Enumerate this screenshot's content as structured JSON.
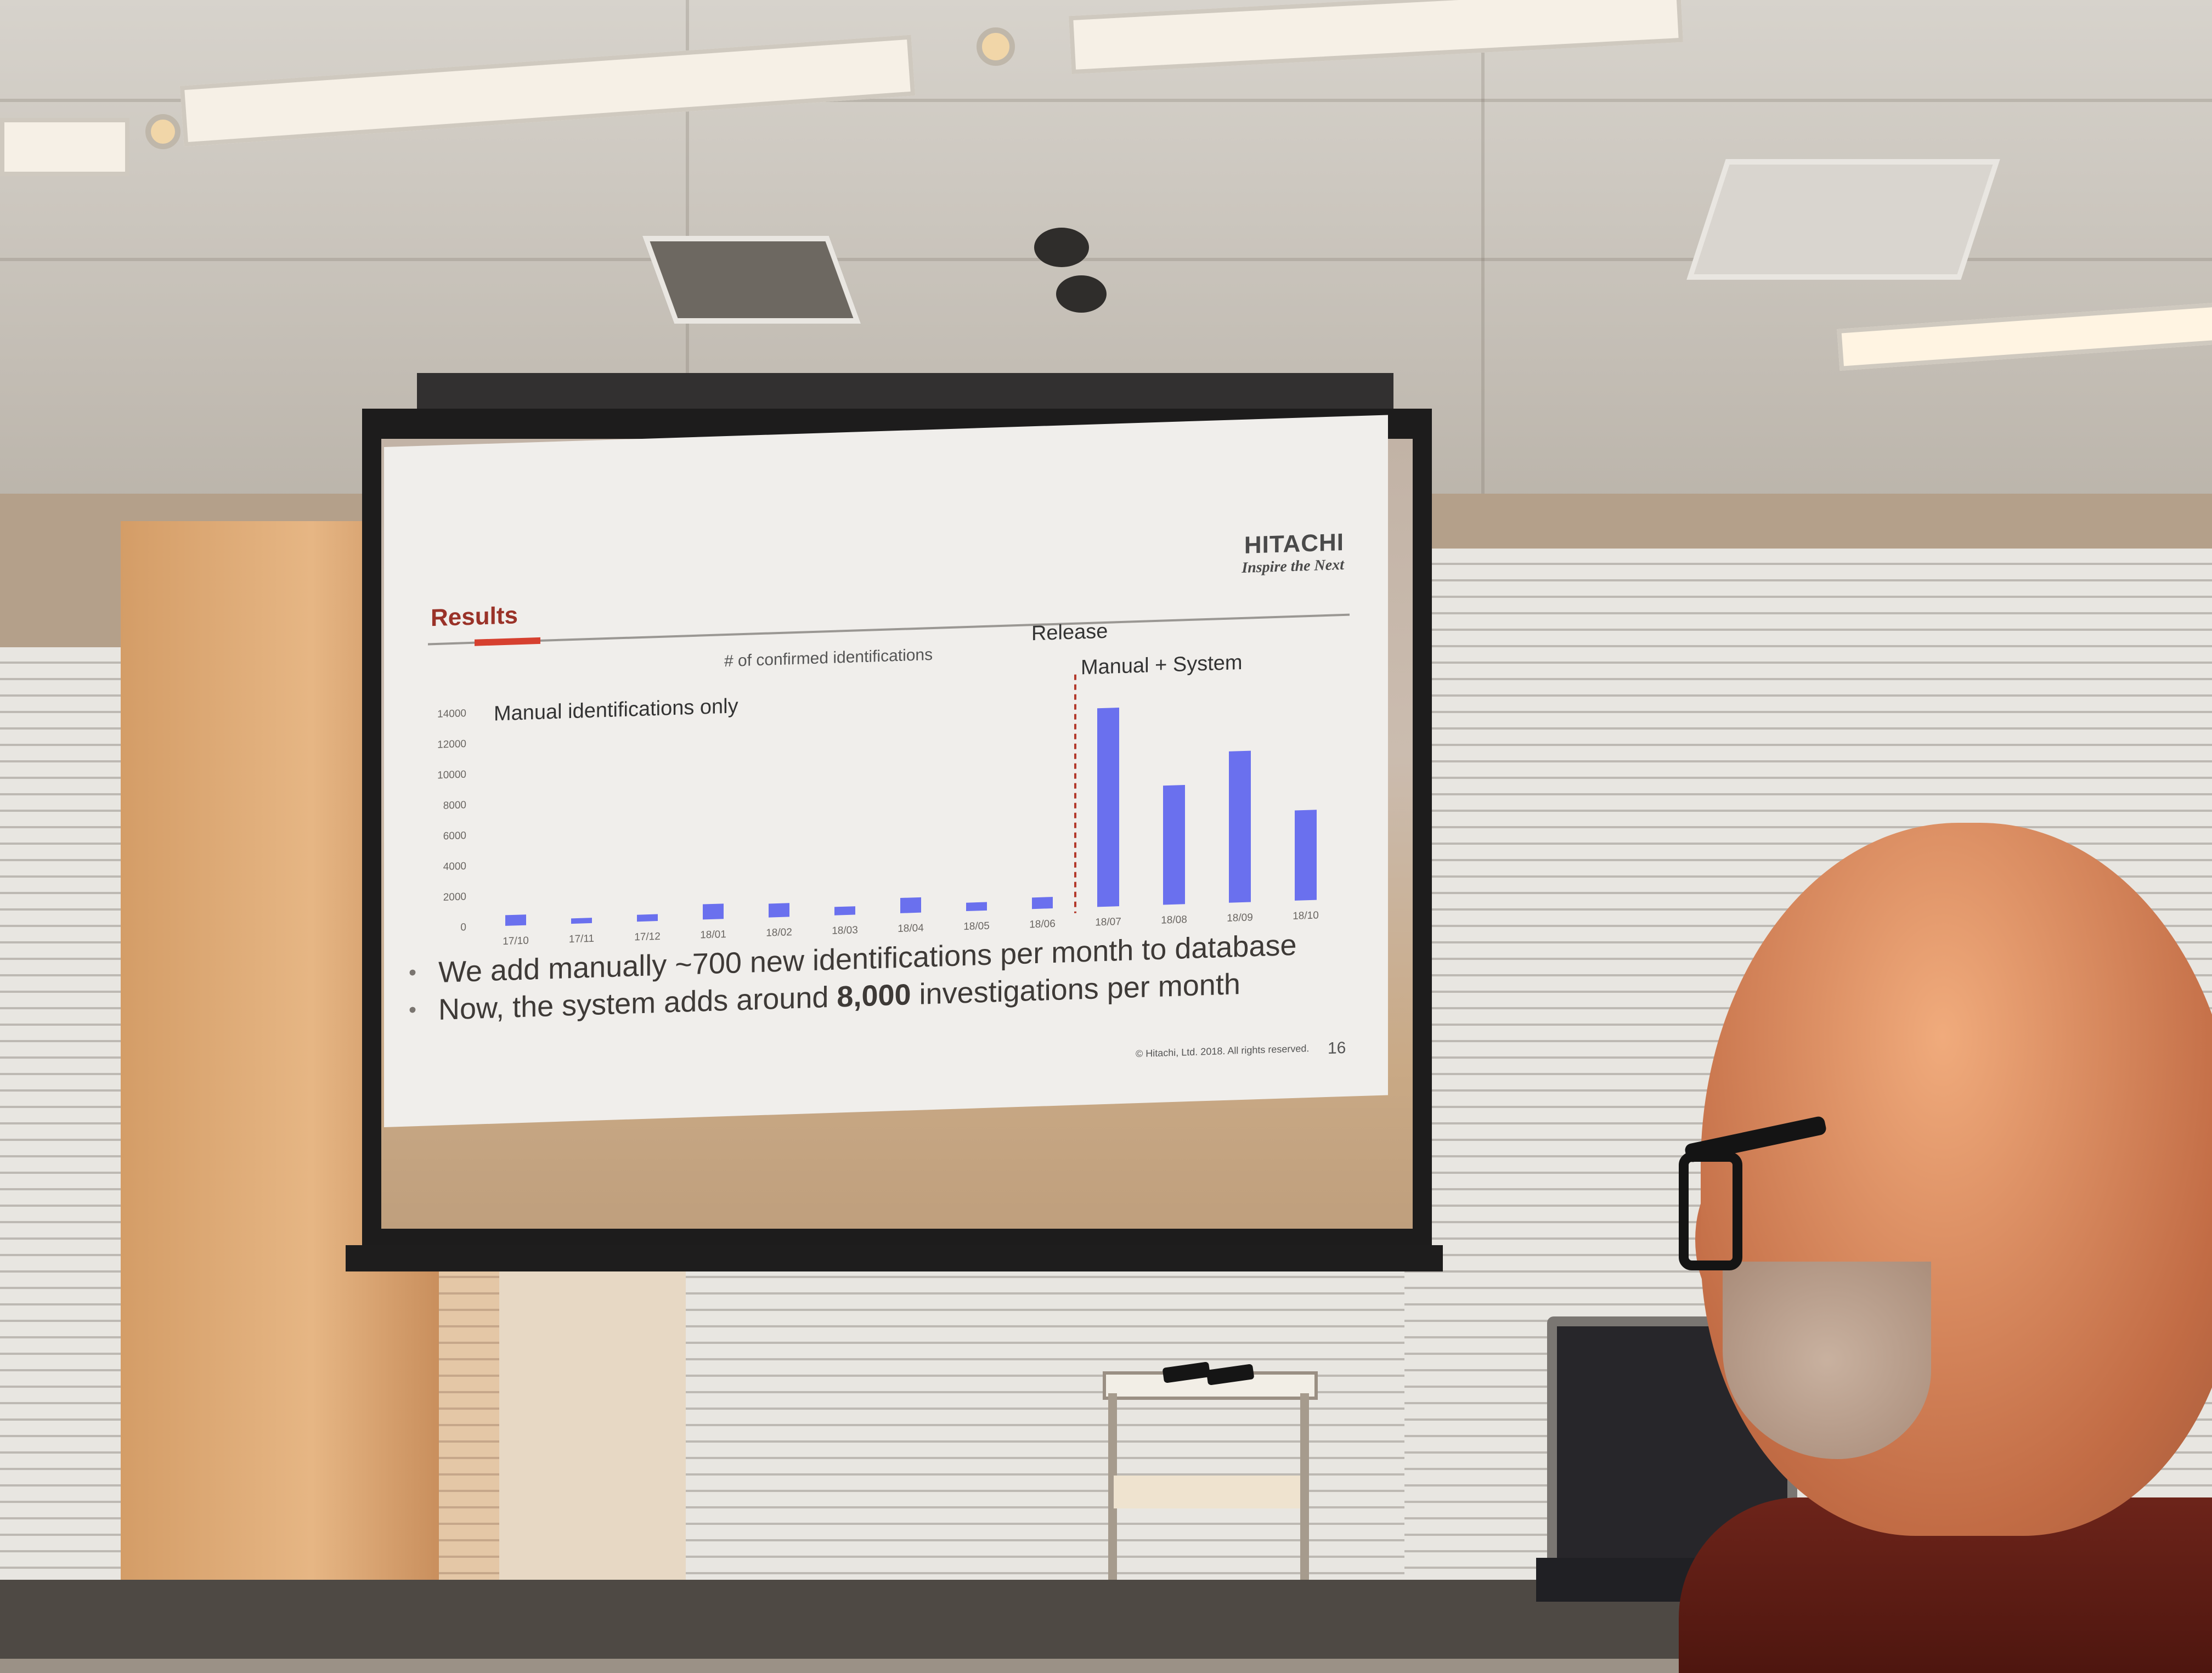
{
  "slide": {
    "title": "Results",
    "brand": {
      "name": "HITACHI",
      "tagline": "Inspire the Next"
    },
    "bullets": [
      {
        "text_before": "We add manually ~700 new identifications per month to database",
        "bold": "",
        "text_after": ""
      },
      {
        "text_before": "Now, the system adds around ",
        "bold": "8,000",
        "text_after": " investigations per month"
      }
    ],
    "footer": {
      "copyright": "© Hitachi, Ltd. 2018. All rights reserved.",
      "page": "16"
    }
  },
  "chart_data": {
    "type": "bar",
    "title": "# of confirmed identifications",
    "categories": [
      "17/10",
      "17/11",
      "17/12",
      "18/01",
      "18/02",
      "18/03",
      "18/04",
      "18/05",
      "18/06",
      "18/07",
      "18/08",
      "18/09",
      "18/10"
    ],
    "series": [
      {
        "values": [
          700,
          350,
          450,
          1000,
          900,
          550,
          1000,
          550,
          750,
          13000,
          7800,
          9900,
          5900
        ],
        "color": "#6a70ee"
      }
    ],
    "y_ticks": [
      "0",
      "2000",
      "4000",
      "6000",
      "8000",
      "10000",
      "12000",
      "14000"
    ],
    "ylim": [
      0,
      14000
    ],
    "annotations": {
      "left_period": "Manual identifications only",
      "release": "Release",
      "right_period": "Manual + System"
    },
    "release_after_index": 8,
    "grid": false
  }
}
